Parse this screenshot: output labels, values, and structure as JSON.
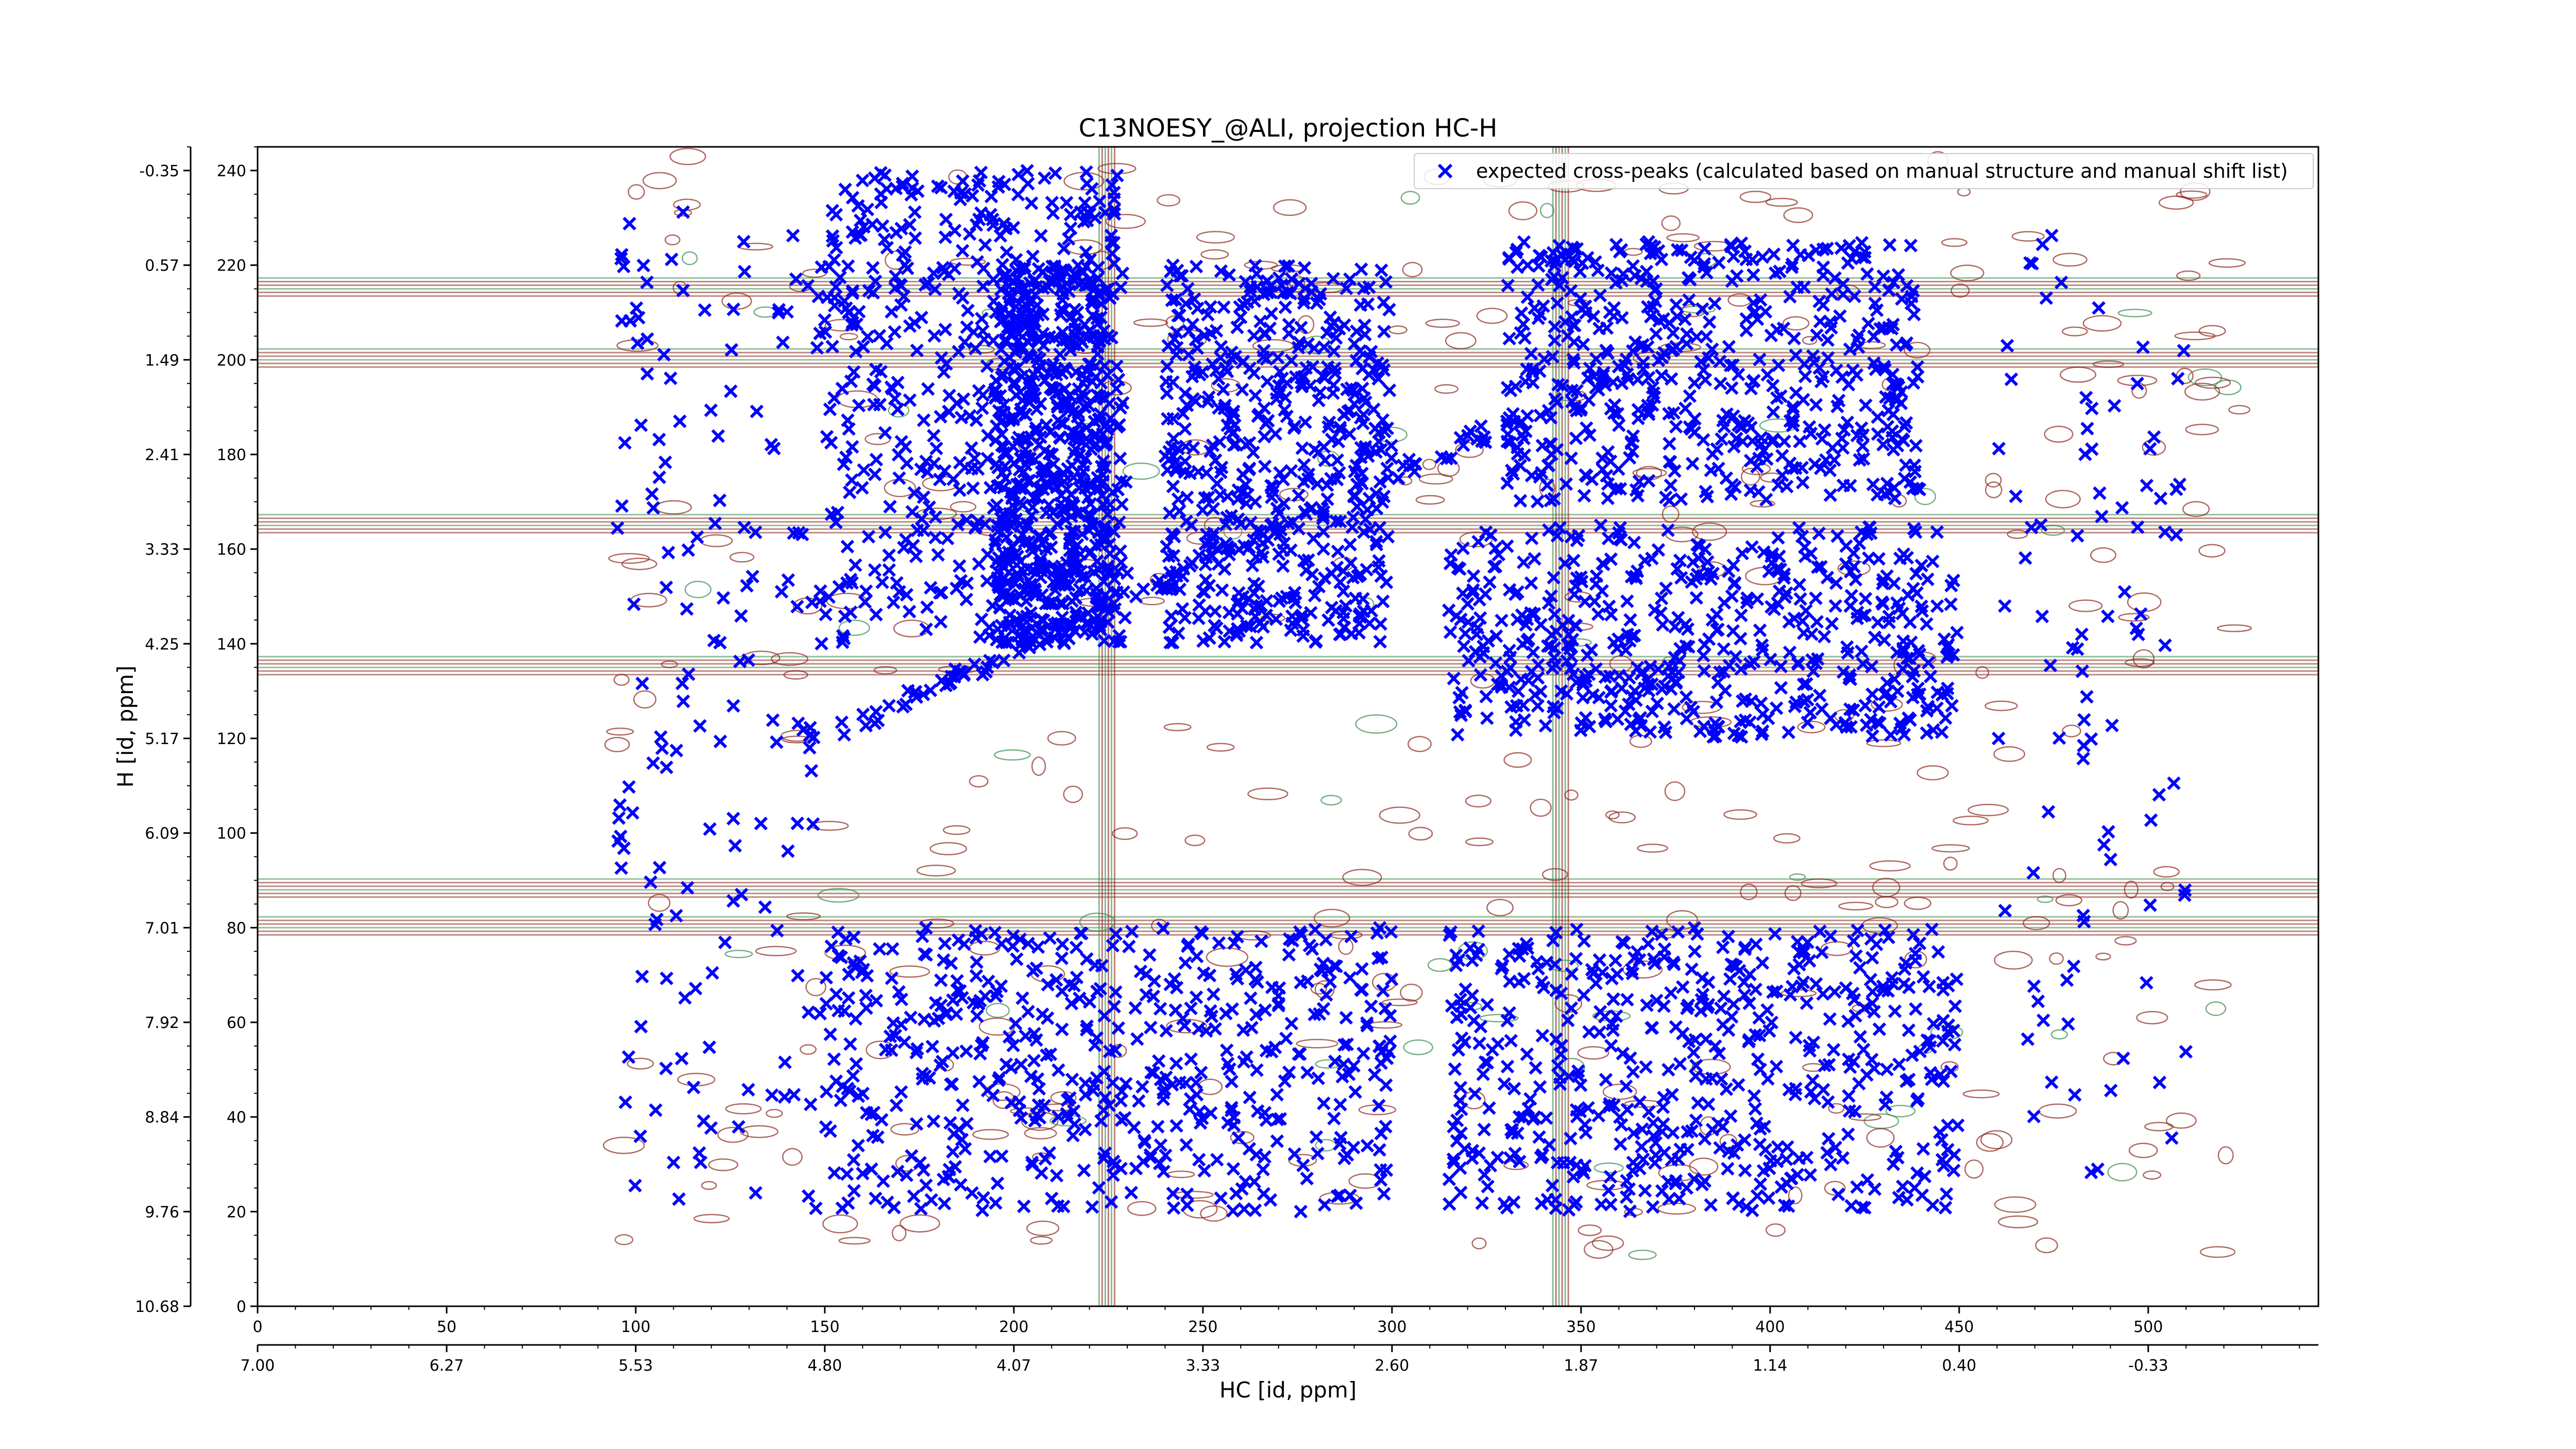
{
  "chart_data": {
    "type": "scatter",
    "title": "C13NOESY_@ALI, projection HC-H",
    "xlabel": "HC [id, ppm]",
    "ylabel": "H [id, ppm]",
    "xlim": [
      0,
      545
    ],
    "ylim": [
      0,
      245
    ],
    "grid": false,
    "legend_position": "top-right",
    "x_ticks": [
      0,
      50,
      100,
      150,
      200,
      250,
      300,
      350,
      400,
      450,
      500
    ],
    "x_tick_labels": [
      "0",
      "50",
      "100",
      "150",
      "200",
      "250",
      "300",
      "350",
      "400",
      "450",
      "500"
    ],
    "x_secondary_ticks": [
      0,
      50,
      100,
      150,
      200,
      250,
      300,
      350,
      400,
      450,
      500
    ],
    "x_secondary_tick_labels": [
      "7.00",
      "6.27",
      "5.53",
      "4.80",
      "4.07",
      "3.33",
      "2.60",
      "1.87",
      "1.14",
      "0.40",
      "-0.33"
    ],
    "y_ticks": [
      0,
      20,
      40,
      60,
      80,
      100,
      120,
      140,
      160,
      180,
      200,
      220,
      240
    ],
    "y_tick_labels": [
      "0",
      "20",
      "40",
      "60",
      "80",
      "100",
      "120",
      "140",
      "160",
      "180",
      "200",
      "220",
      "240"
    ],
    "y_secondary_ticks": [
      0,
      20,
      40,
      60,
      80,
      100,
      120,
      140,
      160,
      180,
      200,
      220,
      240
    ],
    "y_secondary_tick_labels": [
      "10.68",
      "9.76",
      "8.84",
      "7.92",
      "7.01",
      "6.09",
      "5.17",
      "4.25",
      "3.33",
      "2.41",
      "1.49",
      "0.57",
      "-0.35"
    ],
    "series": [
      {
        "name": "expected cross-peaks (calculated based on manual structure and manual shift list)",
        "marker": "x",
        "color": "#0000ff",
        "clusters": [
          {
            "x": [
              150,
              230
            ],
            "y": [
              140,
              240
            ],
            "density": "high"
          },
          {
            "x": [
              195,
              225
            ],
            "y": [
              140,
              220
            ],
            "density": "high"
          },
          {
            "x": [
              240,
              300
            ],
            "y": [
              140,
              220
            ],
            "density": "high"
          },
          {
            "x": [
              330,
              440
            ],
            "y": [
              170,
              225
            ],
            "density": "high"
          },
          {
            "x": [
              315,
              450
            ],
            "y": [
              120,
              165
            ],
            "density": "high"
          },
          {
            "x": [
              150,
              300
            ],
            "y": [
              20,
              80
            ],
            "density": "high"
          },
          {
            "x": [
              315,
              450
            ],
            "y": [
              20,
              80
            ],
            "density": "high"
          },
          {
            "x": [
              95,
              150
            ],
            "y": [
              20,
              240
            ],
            "density": "medium"
          },
          {
            "x": [
              460,
              510
            ],
            "y": [
              20,
              230
            ],
            "density": "low"
          }
        ],
        "diagonal": {
          "x": [
            150,
            380
          ],
          "y": [
            120,
            205
          ]
        }
      }
    ],
    "background_contours": {
      "positive_color": "#8b2a1e",
      "negative_color": "#3c8c50",
      "horizontal_bands_y": [
        135,
        165,
        200,
        215,
        80,
        88
      ],
      "vertical_bands_x": [
        225,
        345
      ]
    }
  }
}
